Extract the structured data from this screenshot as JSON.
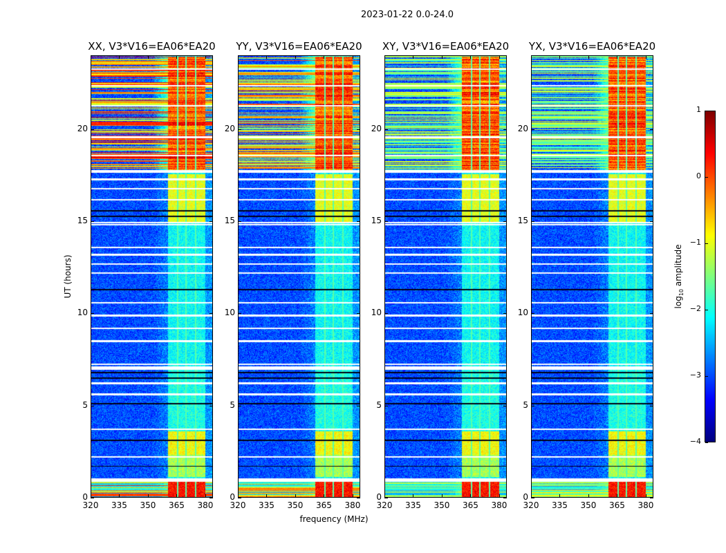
{
  "figure": {
    "suptitle": "2023-01-22 0.0-24.0",
    "ylabel": "UT (hours)",
    "xlabel": "frequency (MHz)"
  },
  "chart_data": {
    "type": "heatmap",
    "title": "2023-01-22 0.0-24.0",
    "xlabel": "frequency (MHz)",
    "ylabel": "UT (hours)",
    "xlim": [
      320,
      384
    ],
    "ylim": [
      0,
      24
    ],
    "xticks": [
      320,
      335,
      350,
      365,
      380
    ],
    "yticks": [
      0,
      5,
      10,
      15,
      20
    ],
    "colormap": "jet",
    "colorbar": {
      "label_prefix": "log",
      "label_sub": "10",
      "label_suffix": " amplitude",
      "range": [
        -4,
        1
      ],
      "ticks": [
        1,
        0,
        -1,
        -2,
        -3,
        -4
      ]
    },
    "panels": [
      {
        "title": "XX, V3*V16=EA06*EA20",
        "broadband_strength": 1.0
      },
      {
        "title": "YY, V3*V16=EA06*EA20",
        "broadband_strength": 0.85
      },
      {
        "title": "XY, V3*V16=EA06*EA20",
        "broadband_strength": 0.6
      },
      {
        "title": "YX, V3*V16=EA06*EA20",
        "broadband_strength": 0.6
      }
    ],
    "background_log_amplitude": -3.0,
    "rfi_band_mhz": [
      360.5,
      380
    ],
    "rfi_band_levels": [
      {
        "hours": [
          0,
          0.9
        ],
        "level": 0.3
      },
      {
        "hours": [
          1.1,
          2.3
        ],
        "level": -1.3
      },
      {
        "hours": [
          2.3,
          3.6
        ],
        "level": -0.9
      },
      {
        "hours": [
          3.6,
          7.0
        ],
        "level": -2.0
      },
      {
        "hours": [
          7.2,
          15.0
        ],
        "level": -2.1
      },
      {
        "hours": [
          15.0,
          17.6
        ],
        "level": -1.0
      },
      {
        "hours": [
          17.8,
          24
        ],
        "level": 0.2
      }
    ],
    "flagged_hours": [
      0.9,
      1.0,
      7.0,
      7.1,
      7.25,
      14.85,
      14.95,
      17.7,
      17.75,
      2.2,
      3.7,
      5.6,
      6.2,
      8.5,
      9.2,
      9.9,
      10.6,
      12.2,
      12.7,
      13.2,
      13.6,
      16.2,
      16.8,
      17.3,
      18.6,
      19.6,
      21.3,
      22.4,
      23.3
    ],
    "dark_hours": [
      1.7,
      3.1,
      5.1,
      6.5,
      6.8,
      11.3,
      15.3,
      15.6
    ]
  }
}
